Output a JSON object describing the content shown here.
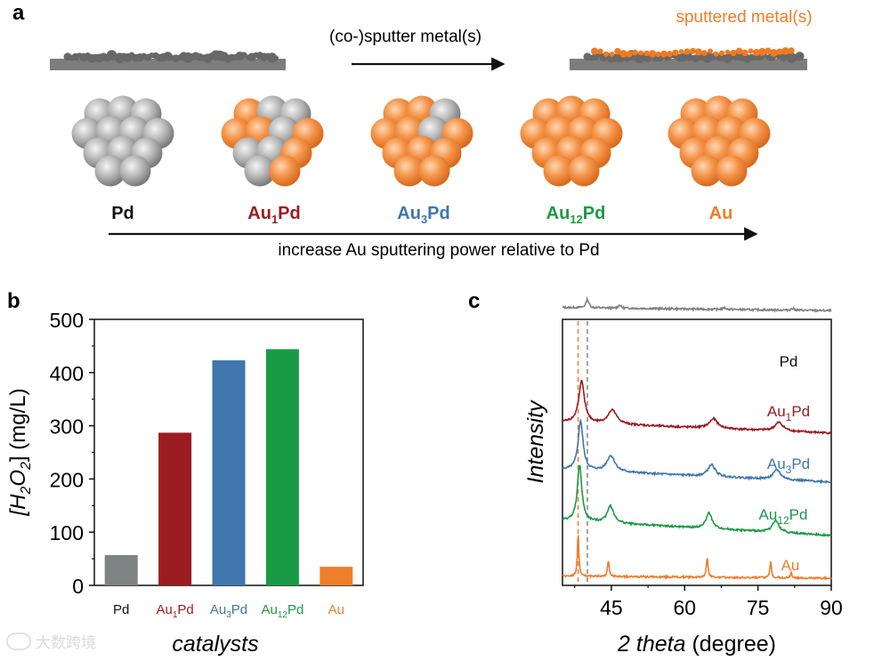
{
  "panel_a": {
    "panel_label": "a",
    "arrow_text": "(co-)sputter metal(s)",
    "sputtered_label": "sputtered metal(s)",
    "axis_text": "increase Au sputtering power relative to Pd",
    "catalysts": [
      {
        "base": "Pd",
        "sub": "",
        "tail": "",
        "color": "#111111"
      },
      {
        "base": "Au",
        "sub": "1",
        "tail": "Pd",
        "color": "#9b1c20"
      },
      {
        "base": "Au",
        "sub": "3",
        "tail": "Pd",
        "color": "#3e76ad"
      },
      {
        "base": "Au",
        "sub": "12",
        "tail": "Pd",
        "color": "#1a9a44"
      },
      {
        "base": "Au",
        "sub": "",
        "tail": "",
        "color": "#ef7d2a"
      }
    ],
    "colors": {
      "pd": "#9c9c9c",
      "au": "#f28a3c",
      "substrate": "#7d7d7d",
      "text_orange": "#ef7d2a"
    }
  },
  "chart_data": [
    {
      "panel": "b",
      "type": "bar",
      "categories": [
        "Pd",
        "Au1Pd",
        "Au3Pd",
        "Au12Pd",
        "Au"
      ],
      "category_labels": [
        {
          "base": "Pd",
          "sub": "",
          "tail": ""
        },
        {
          "base": "Au",
          "sub": "1",
          "tail": "Pd"
        },
        {
          "base": "Au",
          "sub": "3",
          "tail": "Pd"
        },
        {
          "base": "Au",
          "sub": "12",
          "tail": "Pd"
        },
        {
          "base": "Au",
          "sub": "",
          "tail": ""
        }
      ],
      "values": [
        57,
        287,
        423,
        444,
        35
      ],
      "colors": [
        "#7f8383",
        "#9b1c20",
        "#3e76ad",
        "#1a9a44",
        "#ef7d2a"
      ],
      "label_colors": [
        "#111111",
        "#9b1c20",
        "#3e76ad",
        "#1a9a44",
        "#ef7d2a"
      ],
      "ylim": [
        0,
        500
      ],
      "yticks": [
        0,
        100,
        200,
        300,
        400,
        500
      ],
      "xlabel": "catalysts",
      "ylabel_parts": {
        "pre": "[H",
        "sub1": "2",
        "mid": "O",
        "sub2": "2",
        "post": "] (mg/L)"
      }
    },
    {
      "panel": "c",
      "type": "line",
      "xlim": [
        35,
        90
      ],
      "xticks": [
        45,
        60,
        75,
        90
      ],
      "xlabel_italic": "2 theta",
      "xlabel_rest": "(degree)",
      "ylabel": "Intensity",
      "reference_lines": [
        {
          "x": 38.2,
          "color": "#ef7d2a"
        },
        {
          "x": 40.1,
          "color": "#808080"
        }
      ],
      "series": [
        {
          "name": {
            "base": "Pd",
            "sub": "",
            "tail": ""
          },
          "color": "#808080",
          "baseline": 0.94,
          "end": 0.88,
          "amp": 0.42,
          "peaks": [
            {
              "x": 40.1,
              "h": 0.16,
              "w": 0.35
            },
            {
              "x": 46.7,
              "h": 0.06,
              "w": 0.3
            },
            {
              "x": 68.1,
              "h": 0.03,
              "w": 0.4
            },
            {
              "x": 82.1,
              "h": 0.03,
              "w": 0.4
            }
          ]
        },
        {
          "name": {
            "base": "Au",
            "sub": "1",
            "tail": "Pd"
          },
          "color": "#9b1c20",
          "baseline": 0.22,
          "end": 0.02,
          "amp": 0.0,
          "peaks": [
            {
              "x": 38.9,
              "h": 0.78,
              "w": 0.7
            },
            {
              "x": 45.2,
              "h": 0.26,
              "w": 1.1
            },
            {
              "x": 65.9,
              "h": 0.18,
              "w": 1.0
            },
            {
              "x": 79.3,
              "h": 0.16,
              "w": 1.0
            }
          ]
        },
        {
          "name": {
            "base": "Au",
            "sub": "3",
            "tail": "Pd"
          },
          "color": "#3e76ad",
          "baseline": 0.25,
          "end": 0.02,
          "amp": 0.0,
          "peaks": [
            {
              "x": 38.7,
              "h": 0.93,
              "w": 0.6
            },
            {
              "x": 44.9,
              "h": 0.3,
              "w": 1.0
            },
            {
              "x": 65.5,
              "h": 0.22,
              "w": 0.9
            },
            {
              "x": 78.9,
              "h": 0.18,
              "w": 0.9
            }
          ]
        },
        {
          "name": {
            "base": "Au",
            "sub": "12",
            "tail": "Pd"
          },
          "color": "#1a9a44",
          "baseline": 0.3,
          "end": 0.02,
          "amp": 0.0,
          "peaks": [
            {
              "x": 38.5,
              "h": 1.05,
              "w": 0.55
            },
            {
              "x": 44.8,
              "h": 0.32,
              "w": 0.8
            },
            {
              "x": 65.0,
              "h": 0.3,
              "w": 0.7
            },
            {
              "x": 78.6,
              "h": 0.22,
              "w": 0.8
            }
          ]
        },
        {
          "name": {
            "base": "Au",
            "sub": "",
            "tail": ""
          },
          "color": "#ef7d2a",
          "baseline": 0.04,
          "end": 0.0,
          "amp": 0.0,
          "peaks": [
            {
              "x": 38.2,
              "h": 0.8,
              "w": 0.18
            },
            {
              "x": 44.4,
              "h": 0.3,
              "w": 0.2
            },
            {
              "x": 64.6,
              "h": 0.38,
              "w": 0.2
            },
            {
              "x": 77.6,
              "h": 0.3,
              "w": 0.2
            },
            {
              "x": 81.8,
              "h": 0.1,
              "w": 0.2
            }
          ]
        }
      ]
    }
  ],
  "watermark": "大数跨境"
}
